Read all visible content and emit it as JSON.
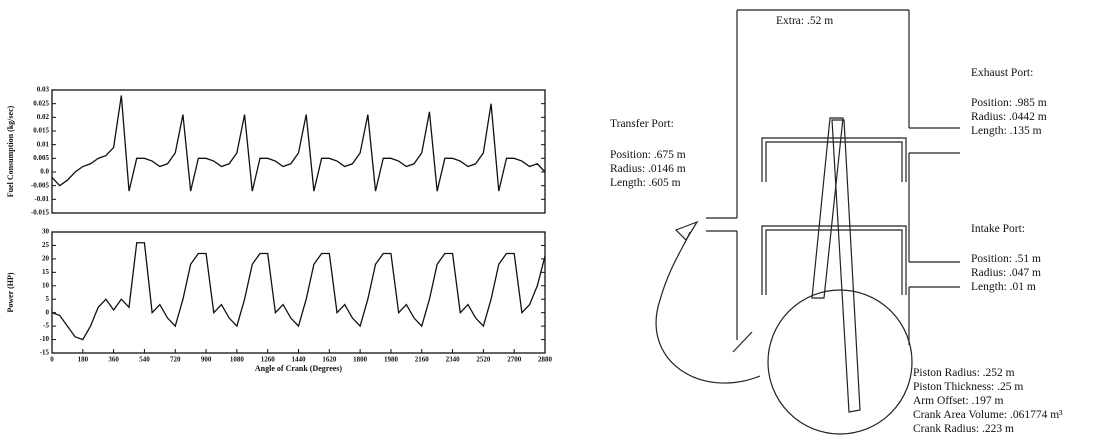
{
  "chart_data": [
    {
      "type": "line",
      "y_label": "Fuel Consumption (kg/sec)",
      "color": "#111111",
      "xlim": [
        0,
        2880
      ],
      "ylim": [
        -0.015,
        0.03
      ],
      "yticks": [
        -0.015,
        -0.01,
        -0.005,
        {
          "value": 0,
          "label": "0.0"
        },
        0.005,
        0.01,
        0.015,
        0.02,
        0.025,
        0.03
      ],
      "x": [
        0,
        45,
        90,
        135,
        180,
        225,
        270,
        315,
        360,
        405,
        450,
        495,
        540,
        585,
        630,
        675,
        720,
        765,
        810,
        855,
        900,
        945,
        990,
        1035,
        1080,
        1125,
        1170,
        1215,
        1260,
        1305,
        1350,
        1395,
        1440,
        1485,
        1530,
        1575,
        1620,
        1665,
        1710,
        1755,
        1800,
        1845,
        1890,
        1935,
        1980,
        2025,
        2070,
        2115,
        2160,
        2205,
        2250,
        2295,
        2340,
        2385,
        2430,
        2475,
        2520,
        2565,
        2610,
        2655,
        2700,
        2745,
        2790,
        2835,
        2880
      ],
      "values": [
        -0.002,
        -0.005,
        -0.003,
        0.0,
        0.002,
        0.003,
        0.005,
        0.006,
        0.009,
        0.028,
        -0.007,
        0.005,
        0.005,
        0.004,
        0.002,
        0.003,
        0.007,
        0.021,
        -0.007,
        0.005,
        0.005,
        0.004,
        0.002,
        0.003,
        0.007,
        0.021,
        -0.007,
        0.005,
        0.005,
        0.004,
        0.002,
        0.003,
        0.007,
        0.021,
        -0.007,
        0.005,
        0.005,
        0.004,
        0.002,
        0.003,
        0.007,
        0.021,
        -0.007,
        0.005,
        0.005,
        0.004,
        0.002,
        0.003,
        0.007,
        0.022,
        -0.007,
        0.005,
        0.005,
        0.004,
        0.002,
        0.003,
        0.007,
        0.025,
        -0.007,
        0.005,
        0.005,
        0.004,
        0.002,
        0.003,
        0.0
      ]
    },
    {
      "type": "line",
      "y_label": "Power (HP)",
      "x_label": "Angle of Crank (Degrees)",
      "color": "#111111",
      "xlim": [
        0,
        2880
      ],
      "ylim": [
        -15,
        30
      ],
      "yticks": [
        -15,
        -10,
        -5,
        0,
        5,
        10,
        15,
        20,
        25,
        30
      ],
      "xticks": [
        0,
        180,
        360,
        540,
        720,
        900,
        1080,
        1260,
        1440,
        1620,
        1800,
        1980,
        2160,
        2340,
        2520,
        2700,
        2880
      ],
      "x": [
        0,
        45,
        90,
        135,
        180,
        225,
        270,
        315,
        360,
        405,
        450,
        495,
        540,
        585,
        630,
        675,
        720,
        765,
        810,
        855,
        900,
        945,
        990,
        1035,
        1080,
        1125,
        1170,
        1215,
        1260,
        1305,
        1350,
        1395,
        1440,
        1485,
        1530,
        1575,
        1620,
        1665,
        1710,
        1755,
        1800,
        1845,
        1890,
        1935,
        1980,
        2025,
        2070,
        2115,
        2160,
        2205,
        2250,
        2295,
        2340,
        2385,
        2430,
        2475,
        2520,
        2565,
        2610,
        2655,
        2700,
        2745,
        2790,
        2835,
        2880
      ],
      "values": [
        0,
        -1,
        -5,
        -9,
        -10,
        -5,
        2,
        5,
        1,
        5,
        2,
        26,
        26,
        0,
        3,
        -2,
        -5,
        5,
        18,
        22,
        22,
        0,
        3,
        -2,
        -5,
        5,
        18,
        22,
        22,
        0,
        3,
        -2,
        -5,
        5,
        18,
        22,
        22,
        0,
        3,
        -2,
        -5,
        5,
        18,
        22,
        22,
        0,
        3,
        -2,
        -5,
        5,
        18,
        22,
        22,
        0,
        3,
        -2,
        -5,
        5,
        18,
        22,
        22,
        0,
        3,
        10,
        21
      ]
    }
  ],
  "diagram": {
    "extra": "Extra:  .52 m",
    "exhaust_port": {
      "title": "Exhaust Port:",
      "lines": [
        "Position:  .985 m",
        "Radius:  .0442 m",
        "Length:  .135 m"
      ]
    },
    "transfer_port": {
      "title": "Transfer Port:",
      "lines": [
        "Position:  .675 m",
        "Radius:  .0146 m",
        "Length:  .605 m"
      ]
    },
    "intake_port": {
      "title": "Intake Port:",
      "lines": [
        "Position:  .51 m",
        "Radius:  .047 m",
        "Length:  .01 m"
      ]
    },
    "piston": [
      "Piston Radius:  .252 m",
      "Piston Thickness:  .25 m",
      "Arm Offset:  .197 m",
      "Crank Area Volume:  .061774 m³",
      "Crank Radius:  .223 m"
    ]
  }
}
